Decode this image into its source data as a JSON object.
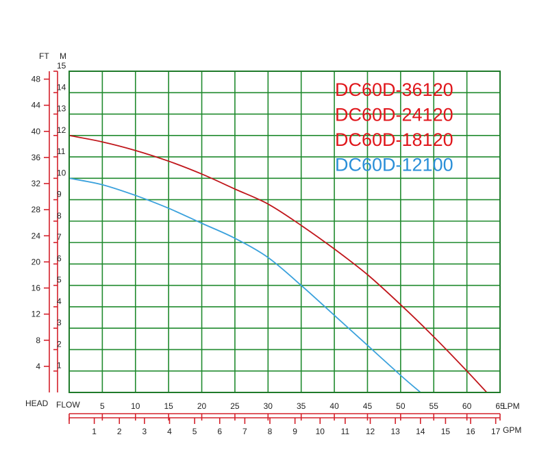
{
  "chart_data": {
    "type": "line",
    "left_axis": {
      "ft_unit": "FT",
      "m_unit": "M",
      "ft_ticks": [
        4,
        8,
        12,
        16,
        20,
        24,
        28,
        32,
        36,
        40,
        44,
        48
      ],
      "m_ticks": [
        1,
        2,
        3,
        4,
        5,
        6,
        7,
        8,
        9,
        10,
        11,
        12,
        13,
        14,
        15
      ],
      "ylim_m": [
        0,
        15
      ]
    },
    "bottom_axis": {
      "head_label": "HEAD",
      "flow_label": "FLOW",
      "lpm_unit": "LPM",
      "gpm_unit": "GPM",
      "lpm_ticks": [
        5,
        10,
        15,
        20,
        25,
        30,
        35,
        40,
        45,
        50,
        55,
        60,
        65
      ],
      "gpm_ticks": [
        1,
        2,
        3,
        4,
        5,
        6,
        7,
        8,
        9,
        10,
        11,
        12,
        13,
        14,
        15,
        16,
        17
      ],
      "xlim_lpm": [
        0,
        65
      ]
    },
    "grid": true,
    "legend_position": "top-right",
    "legend": [
      {
        "label": "DC60D-36120",
        "color": "#e0161b"
      },
      {
        "label": "DC60D-24120",
        "color": "#e0161b"
      },
      {
        "label": "DC60D-18120",
        "color": "#e0161b"
      },
      {
        "label": "DC60D-12100",
        "color": "#2a8fd8"
      }
    ],
    "series": [
      {
        "color": "#c0161b",
        "x_lpm": [
          0,
          5,
          10,
          15,
          20,
          25,
          30,
          35,
          40,
          45,
          50,
          55,
          60,
          63
        ],
        "y_m": [
          12.0,
          11.7,
          11.3,
          10.8,
          10.2,
          9.5,
          8.8,
          7.8,
          6.7,
          5.5,
          4.1,
          2.6,
          1.0,
          0
        ]
      },
      {
        "color": "#3aa1dc",
        "x_lpm": [
          0,
          5,
          10,
          15,
          20,
          25,
          30,
          35,
          40,
          45,
          50,
          53
        ],
        "y_m": [
          10.0,
          9.7,
          9.2,
          8.6,
          7.9,
          7.2,
          6.3,
          5.0,
          3.6,
          2.2,
          0.8,
          0
        ]
      }
    ]
  }
}
